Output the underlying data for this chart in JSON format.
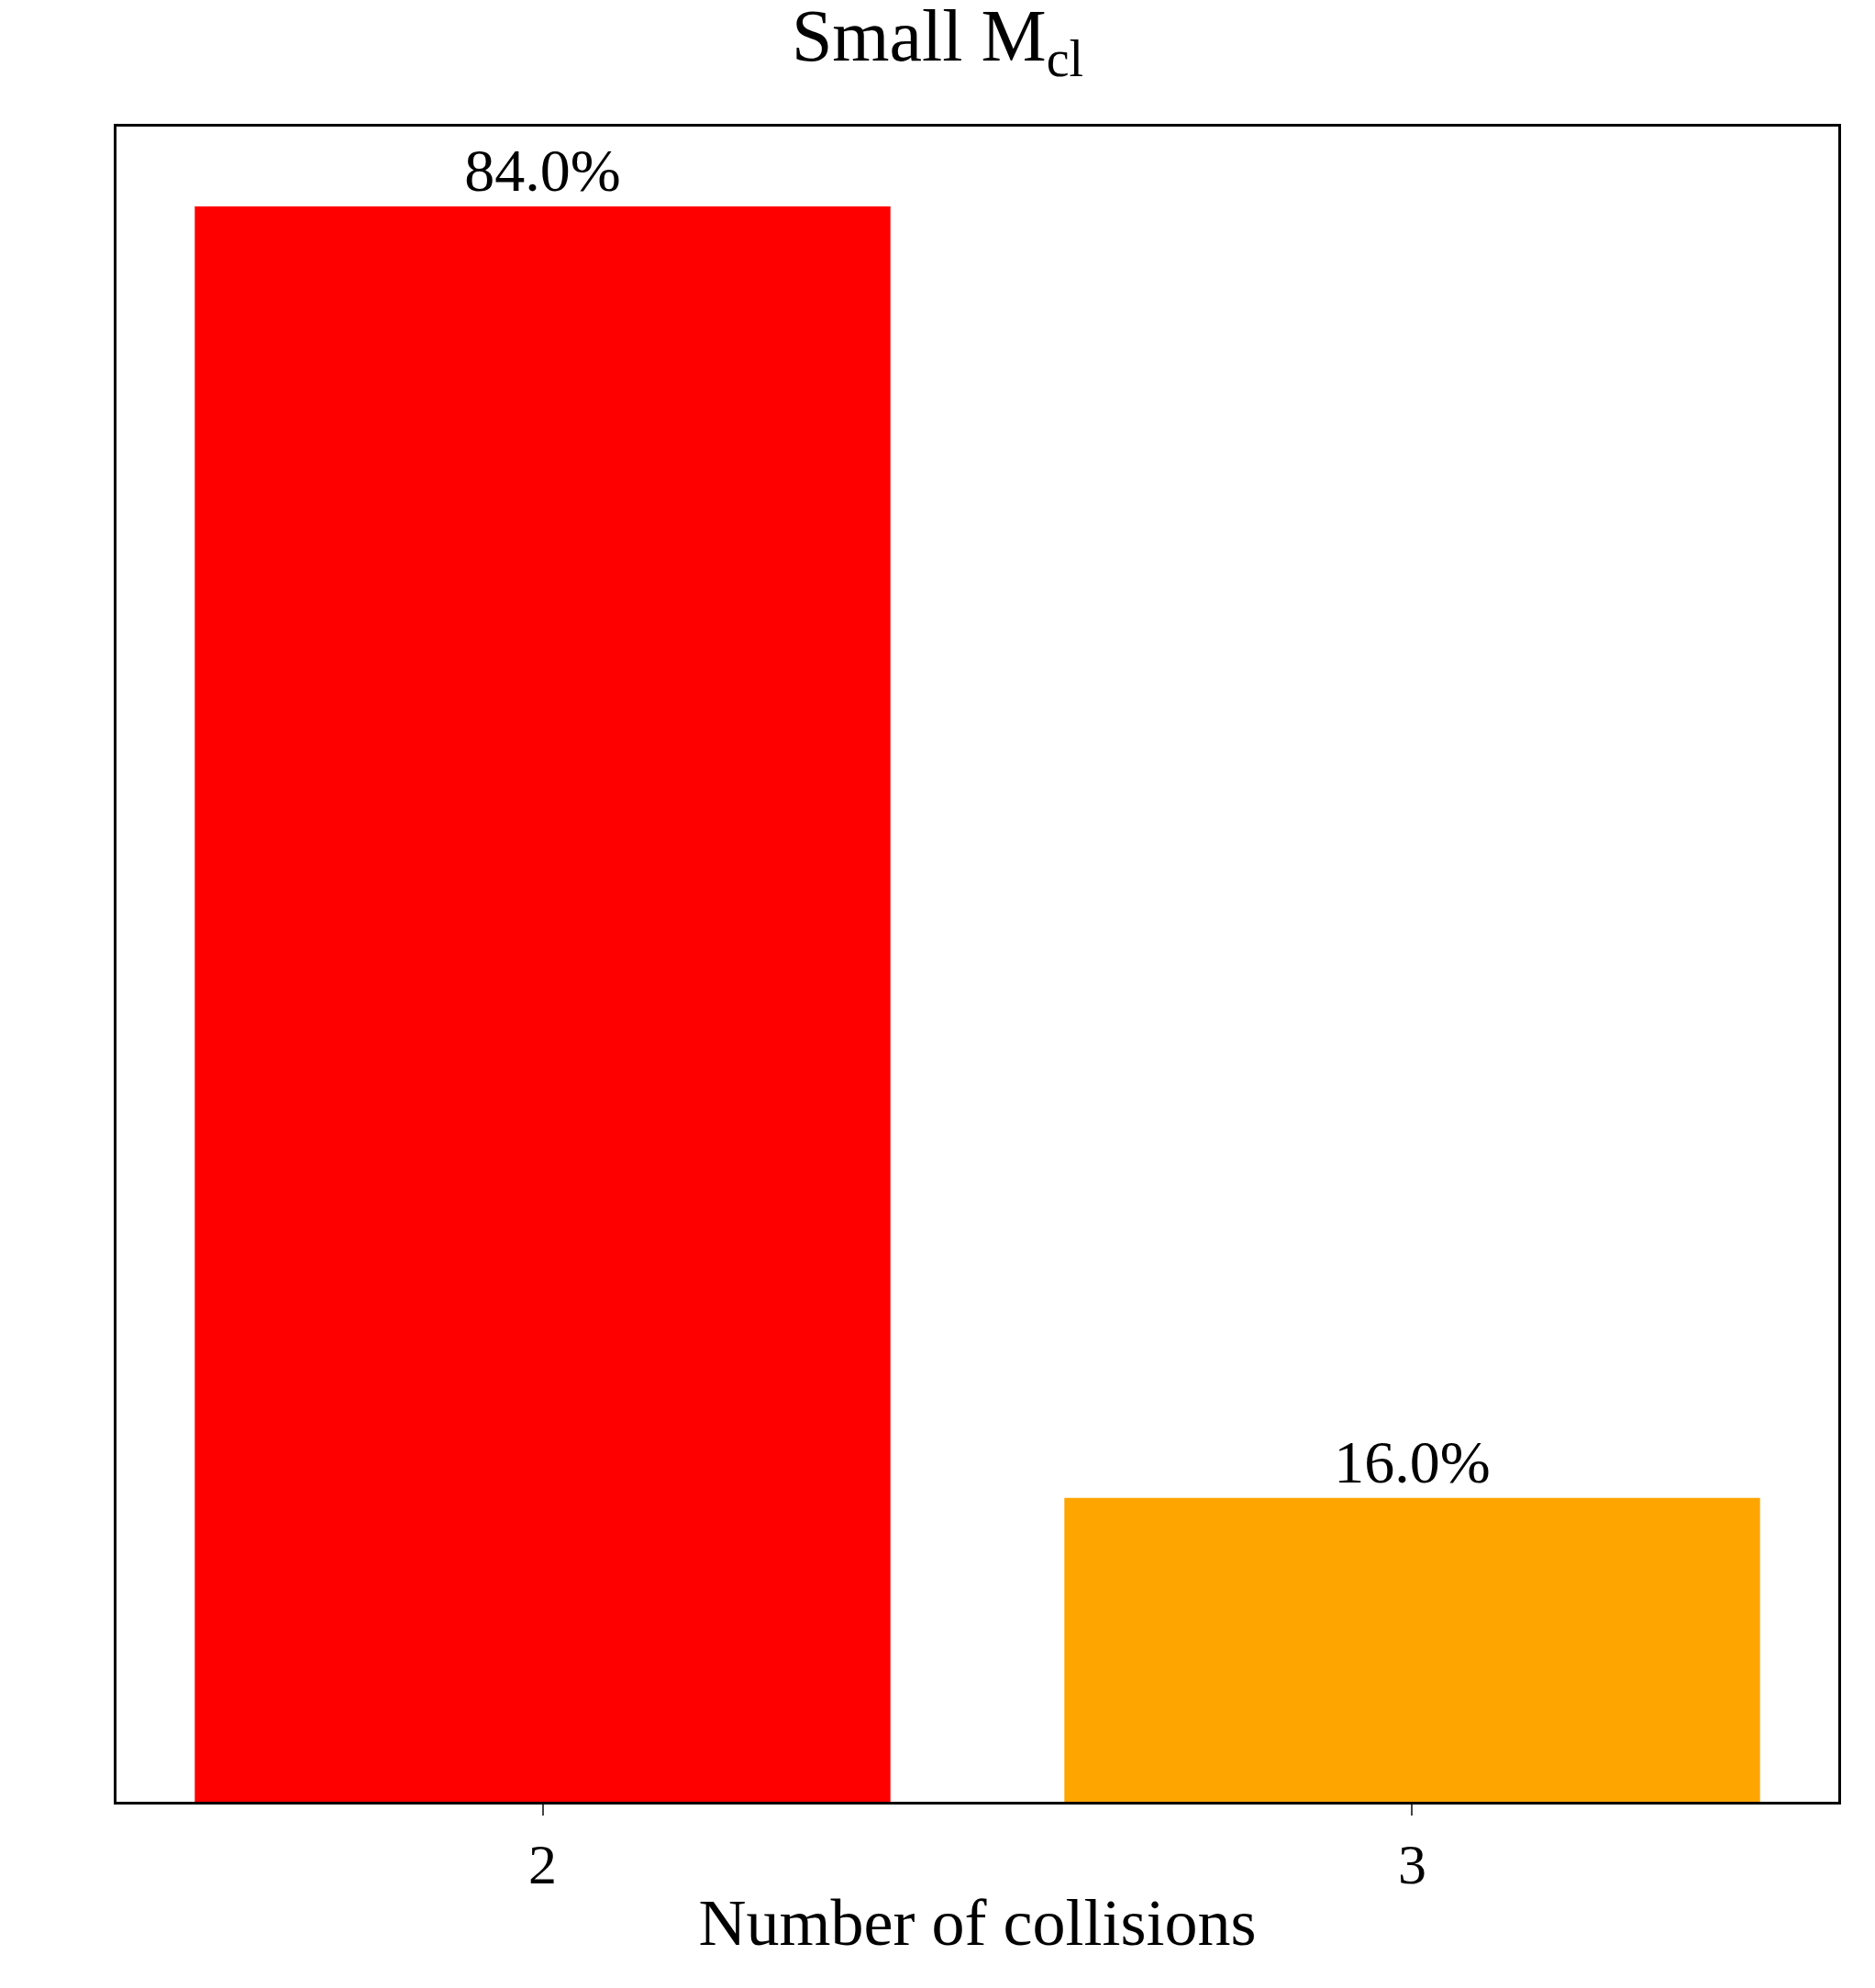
{
  "chart_data": {
    "type": "bar",
    "title": "Small M$_{cl}$",
    "xlabel": "Number of collisions",
    "categories": [
      "2",
      "3"
    ],
    "values": [
      84.0,
      16.0
    ],
    "colors": [
      "#ff0000",
      "#ffa500"
    ],
    "value_labels": [
      "84.0%",
      "16.0%"
    ],
    "tick_labels": "x"
  }
}
